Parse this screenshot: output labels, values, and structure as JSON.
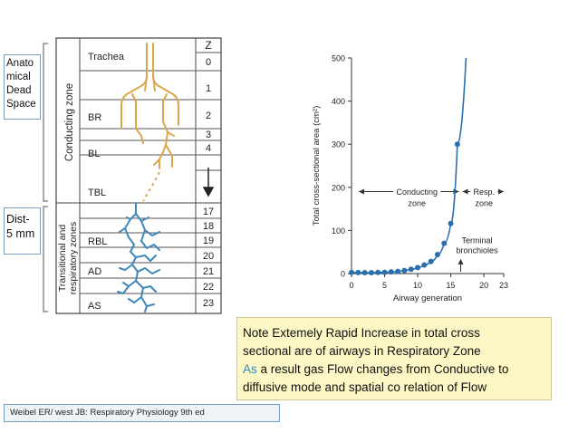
{
  "left_labels": {
    "anatomical_dead_space": [
      "Anato",
      "mical",
      "Dead",
      "Space"
    ],
    "distance": [
      "Dist-",
      "5 mm"
    ]
  },
  "airway_diagram": {
    "z_header": "Z",
    "conducting_zone_label": "Conducting zone",
    "transitional_zone_label": [
      "Transitional and",
      "respiratory zones"
    ],
    "generations": [
      "0",
      "1",
      "2",
      "3",
      "4",
      "17",
      "18",
      "19",
      "20",
      "21",
      "22",
      "23"
    ],
    "structures": [
      "Trachea",
      "BR",
      "BL",
      "TBL",
      "RBL",
      "AD",
      "AS"
    ],
    "colors": {
      "conducting": "#d9a84e",
      "respiratory": "#3d88b8",
      "frame": "#444444"
    }
  },
  "chart_data": {
    "type": "line",
    "xlabel": "Airway generation",
    "ylabel": "Total cross-sectional area (cm²)",
    "xlim": [
      0,
      23
    ],
    "ylim": [
      0,
      500
    ],
    "xticks": [
      "0",
      "5",
      "10",
      "15",
      "20",
      "23"
    ],
    "yticks": [
      "0",
      "100",
      "200",
      "300",
      "400",
      "500"
    ],
    "x": [
      0,
      1,
      2,
      3,
      4,
      5,
      6,
      7,
      8,
      9,
      10,
      11,
      12,
      13,
      14,
      15,
      16
    ],
    "y": [
      2.5,
      2.3,
      2.1,
      2.0,
      2.5,
      3.0,
      4.0,
      5.0,
      7.0,
      10.0,
      14.0,
      20.0,
      28.0,
      44.0,
      70.0,
      116.0,
      300.0
    ],
    "curve_end": {
      "x": 17.3,
      "y": 500
    },
    "line_color": "#2a6fb0",
    "annotations": {
      "conducting_zone": [
        "Conducting",
        "zone"
      ],
      "resp_zone": [
        "Resp.",
        "zone"
      ],
      "terminal_bronchioles": [
        "Terminal",
        "bronchioles"
      ]
    }
  },
  "note": {
    "line1": "Note Extemely Rapid Increase in total cross",
    "line2": "sectional are of airways in Respiratory Zone",
    "line3_as": "As",
    "line3_rest": " a result gas Flow changes from Conductive to",
    "line4": "diffusive mode and spatial co relation of Flow"
  },
  "citation": "Weibel ER/ west JB: Respiratory Physiology 9th ed"
}
